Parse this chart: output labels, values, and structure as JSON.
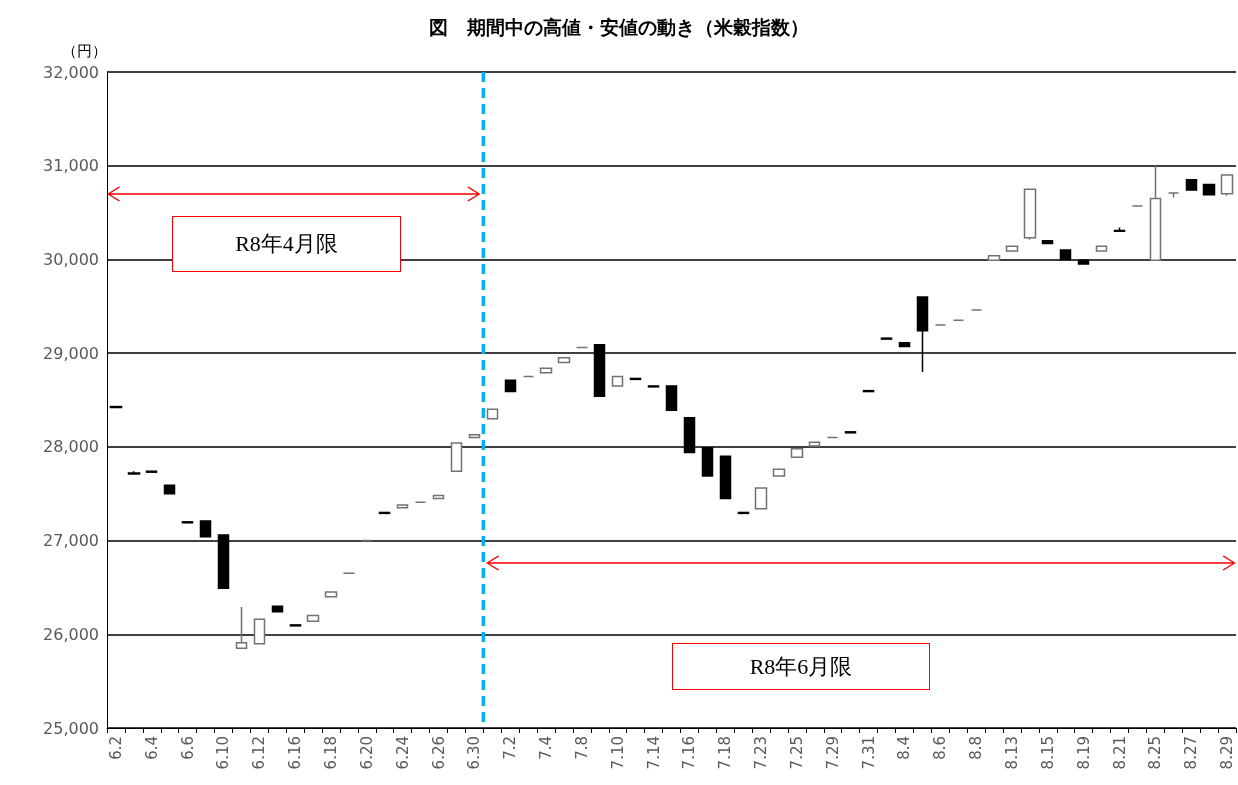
{
  "chart_data": {
    "type": "candlestick",
    "title": "図　期間中の高値・安値の動き（米穀指数）",
    "ylabel": "（円）",
    "categories": [
      "6.2",
      null,
      "6.4",
      null,
      "6.6",
      null,
      "6.10",
      null,
      "6.12",
      null,
      "6.16",
      null,
      "6.18",
      null,
      "6.20",
      null,
      "6.24",
      null,
      "6.26",
      null,
      "6.30",
      null,
      "7.2",
      null,
      "7.4",
      null,
      "7.8",
      null,
      "7.10",
      null,
      "7.14",
      null,
      "7.16",
      null,
      "7.18",
      null,
      "7.23",
      null,
      "7.25",
      null,
      "7.29",
      null,
      "7.31",
      null,
      "8.4",
      null,
      "8.6",
      null,
      "8.8",
      null,
      "8.13",
      null,
      "8.15",
      null,
      "8.19",
      null,
      "8.21",
      null,
      "8.25",
      null,
      "8.27",
      null,
      "8.29"
    ],
    "ohlc": [
      [
        28430,
        28430,
        28420,
        28420
      ],
      [
        27720,
        27740,
        27710,
        27710
      ],
      [
        27740,
        27740,
        27730,
        27730
      ],
      [
        27590,
        27590,
        27500,
        27500
      ],
      [
        27200,
        27200,
        27190,
        27190
      ],
      [
        27210,
        27210,
        27040,
        27040
      ],
      [
        27060,
        27060,
        26490,
        26490
      ],
      [
        25850,
        26290,
        25850,
        25910
      ],
      [
        25900,
        26160,
        25900,
        26160
      ],
      [
        26300,
        26300,
        26240,
        26240
      ],
      [
        26100,
        26100,
        26090,
        26090
      ],
      [
        26140,
        26200,
        26140,
        26200
      ],
      [
        26400,
        26450,
        26400,
        26450
      ],
      [
        26650,
        26650,
        26650,
        26650
      ],
      [
        27000,
        27000,
        27000,
        27000
      ],
      [
        27300,
        27300,
        27290,
        27290
      ],
      [
        27350,
        27380,
        27350,
        27380
      ],
      [
        27410,
        27410,
        27410,
        27410
      ],
      [
        27450,
        27480,
        27450,
        27480
      ],
      [
        27740,
        28040,
        27740,
        28040
      ],
      [
        28100,
        28130,
        28100,
        28130
      ],
      [
        28300,
        28400,
        28300,
        28400
      ],
      [
        28710,
        28710,
        28590,
        28590
      ],
      [
        28750,
        28750,
        28750,
        28750
      ],
      [
        28790,
        28840,
        28790,
        28840
      ],
      [
        28900,
        28950,
        28900,
        28950
      ],
      [
        29060,
        29060,
        29060,
        29060
      ],
      [
        29090,
        29090,
        28540,
        28540
      ],
      [
        28650,
        28750,
        28650,
        28750
      ],
      [
        28730,
        28730,
        28720,
        28720
      ],
      [
        28650,
        28650,
        28640,
        28640
      ],
      [
        28650,
        28650,
        28390,
        28390
      ],
      [
        28310,
        28310,
        27940,
        27940
      ],
      [
        27990,
        27990,
        27690,
        27690
      ],
      [
        27900,
        27900,
        27450,
        27450
      ],
      [
        27300,
        27300,
        27290,
        27290
      ],
      [
        27340,
        27560,
        27340,
        27560
      ],
      [
        27690,
        27760,
        27690,
        27760
      ],
      [
        27890,
        27980,
        27890,
        27980
      ],
      [
        28010,
        28050,
        28010,
        28050
      ],
      [
        28100,
        28100,
        28100,
        28100
      ],
      [
        28160,
        28160,
        28150,
        28150
      ],
      [
        28600,
        28600,
        28590,
        28590
      ],
      [
        29160,
        29160,
        29150,
        29150
      ],
      [
        29110,
        29110,
        29070,
        29070
      ],
      [
        29600,
        29600,
        28800,
        29240
      ],
      [
        29300,
        29300,
        29300,
        29300
      ],
      [
        29350,
        29350,
        29350,
        29350
      ],
      [
        29460,
        29460,
        29460,
        29460
      ],
      [
        29990,
        30040,
        29990,
        30040
      ],
      [
        30090,
        30140,
        30090,
        30140
      ],
      [
        30230,
        30750,
        30210,
        30750
      ],
      [
        30200,
        30200,
        30170,
        30170
      ],
      [
        30100,
        30100,
        30000,
        30000
      ],
      [
        29990,
        29990,
        29950,
        29950
      ],
      [
        30090,
        30140,
        30090,
        30140
      ],
      [
        30310,
        30340,
        30300,
        30300
      ],
      [
        30570,
        30570,
        30570,
        30570
      ],
      [
        29990,
        31000,
        29990,
        30650
      ],
      [
        30710,
        30710,
        30660,
        30710
      ],
      [
        30850,
        30850,
        30740,
        30740
      ],
      [
        30800,
        30800,
        30690,
        30690
      ],
      [
        30700,
        30900,
        30680,
        30900
      ]
    ],
    "ylim": [
      25000,
      32000
    ],
    "yticks": [
      {
        "value": 25000,
        "label": "25,000"
      },
      {
        "value": 26000,
        "label": "26,000"
      },
      {
        "value": 27000,
        "label": "27,000"
      },
      {
        "value": 28000,
        "label": "28,000"
      },
      {
        "value": 29000,
        "label": "29,000"
      },
      {
        "value": 30000,
        "label": "30,000"
      },
      {
        "value": 31000,
        "label": "31,000"
      },
      {
        "value": 32000,
        "label": "32,000"
      }
    ],
    "grid": "y",
    "ref_lines": [
      {
        "axis": "x",
        "value": "6.30",
        "color": "#00b0f0",
        "line_style": "dashed"
      }
    ],
    "annotations": [
      "R8年4月限",
      "R8年6月限"
    ]
  }
}
